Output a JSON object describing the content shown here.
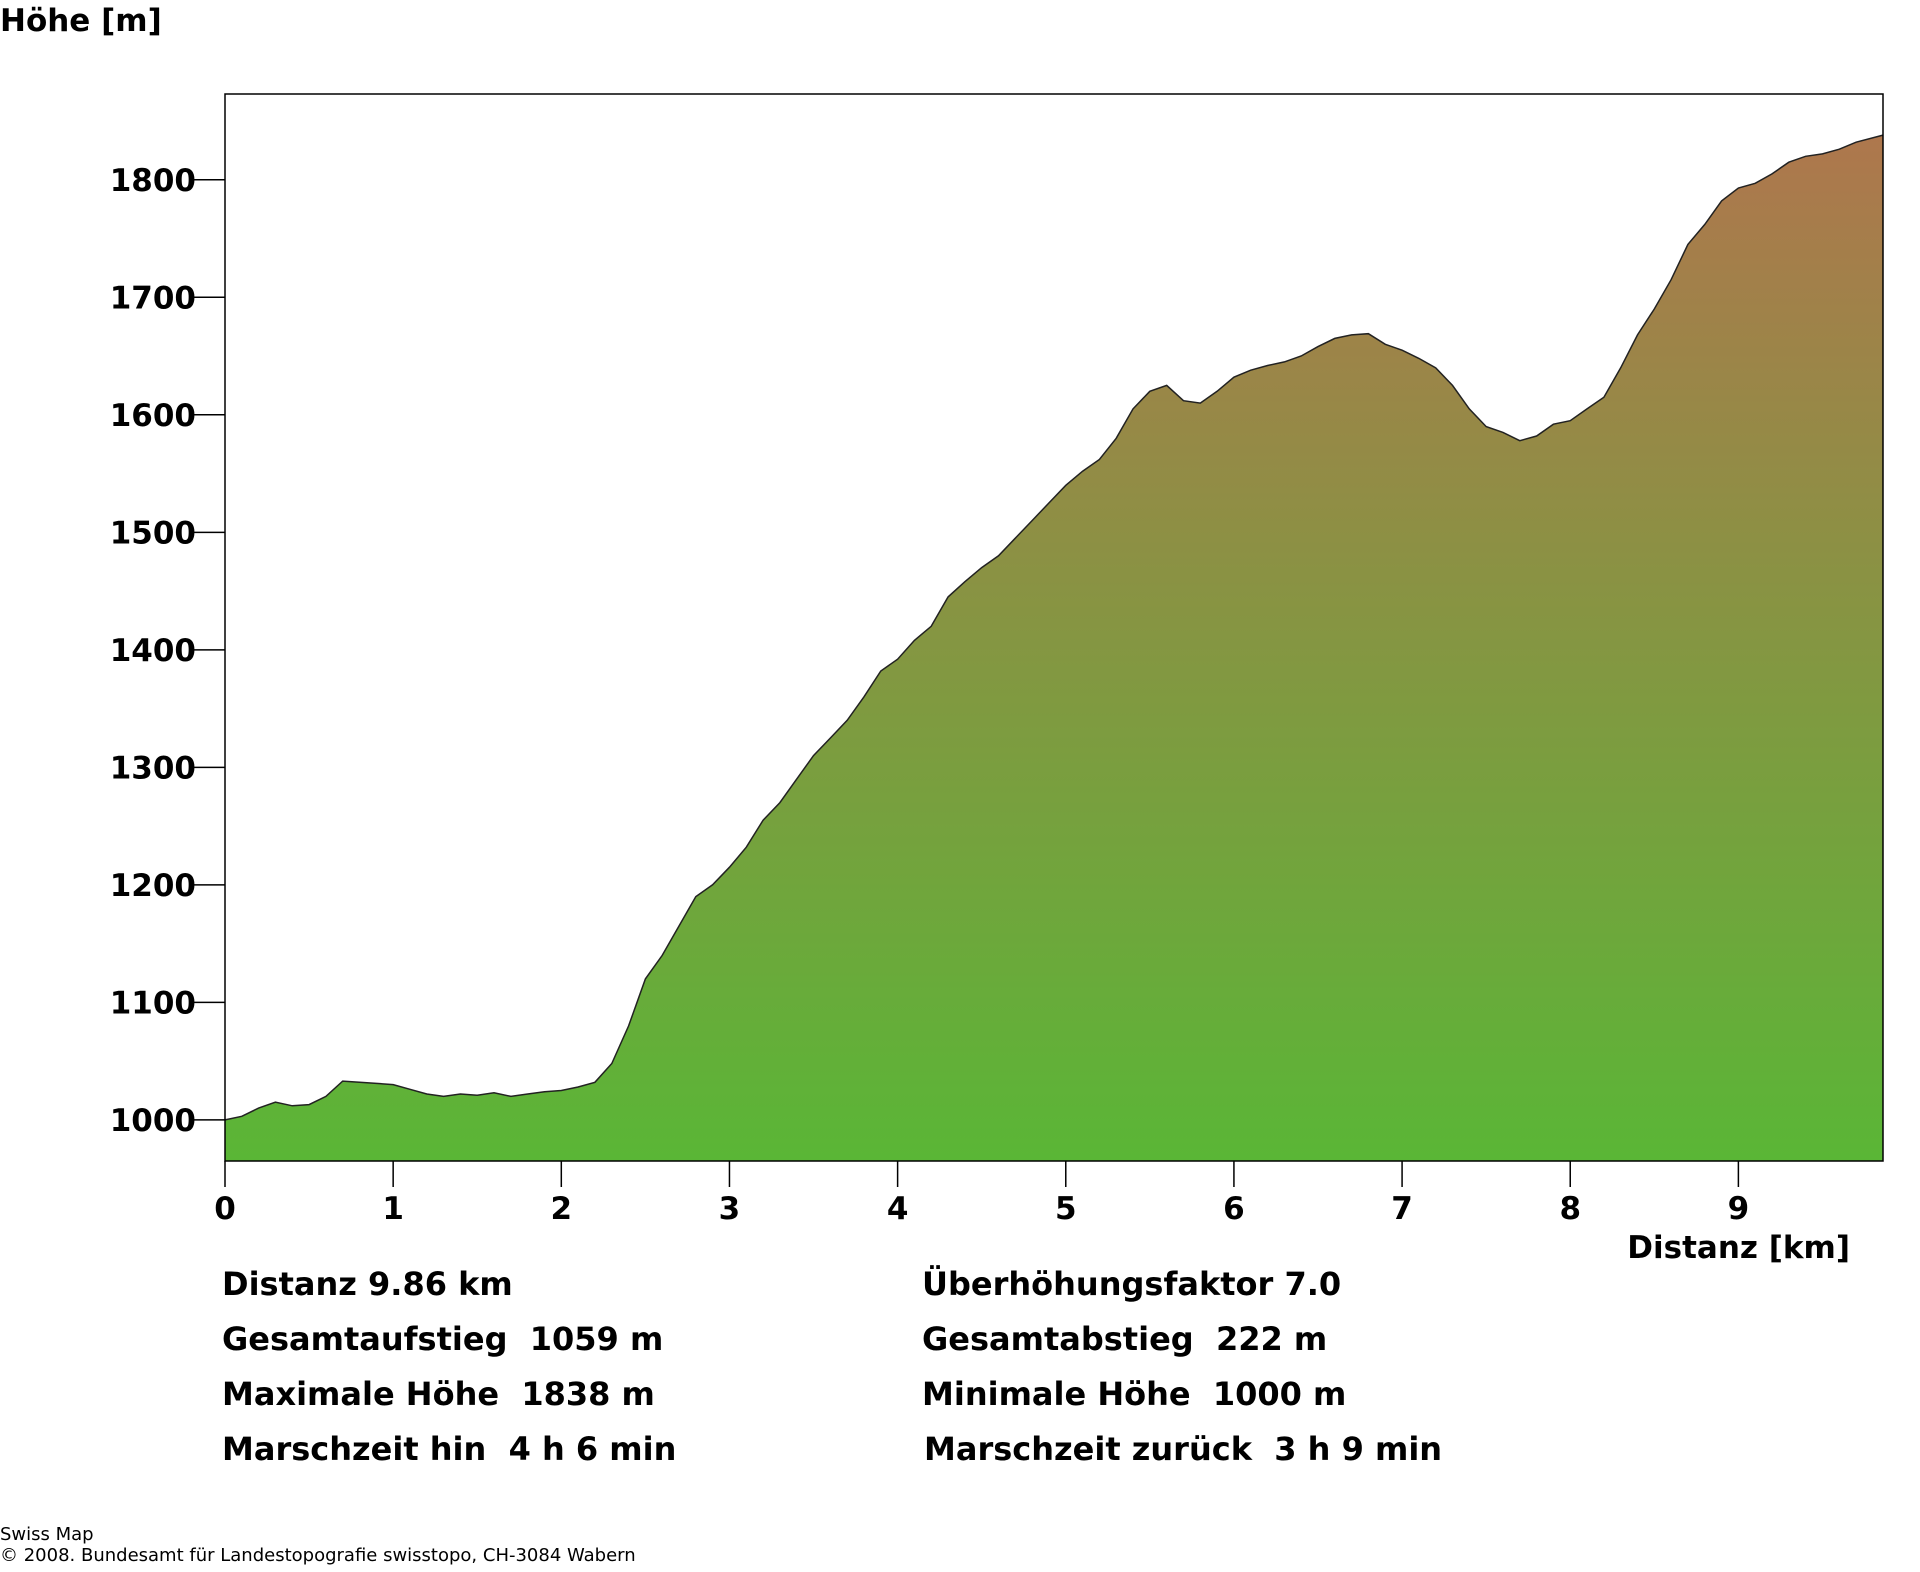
{
  "chart_data": {
    "type": "area",
    "ylabel": "Höhe [m]",
    "xlabel": "Distanz [km]",
    "xlim": [
      0,
      9.86
    ],
    "ylim": [
      965,
      1873
    ],
    "x_ticks": [
      "0",
      "1",
      "2",
      "3",
      "4",
      "5",
      "6",
      "7",
      "8",
      "9"
    ],
    "y_ticks": [
      "1000",
      "1100",
      "1200",
      "1300",
      "1400",
      "1500",
      "1600",
      "1700",
      "1800"
    ],
    "grid": false,
    "fill_gradient": [
      "#5ab636",
      "#ae774d"
    ],
    "series": [
      {
        "x": [
          0,
          0.1,
          0.2,
          0.3,
          0.4,
          0.5,
          0.6,
          0.7,
          0.8,
          0.9,
          1.0,
          1.1,
          1.2,
          1.3,
          1.4,
          1.5,
          1.6,
          1.7,
          1.8,
          1.9,
          2.0,
          2.1,
          2.2,
          2.3,
          2.4,
          2.5,
          2.6,
          2.7,
          2.8,
          2.9,
          3.0,
          3.1,
          3.2,
          3.3,
          3.4,
          3.5,
          3.6,
          3.7,
          3.8,
          3.9,
          4.0,
          4.1,
          4.2,
          4.3,
          4.4,
          4.5,
          4.6,
          4.7,
          4.8,
          4.9,
          5.0,
          5.1,
          5.2,
          5.3,
          5.4,
          5.5,
          5.6,
          5.7,
          5.8,
          5.9,
          6.0,
          6.1,
          6.2,
          6.3,
          6.4,
          6.5,
          6.6,
          6.7,
          6.8,
          6.9,
          7.0,
          7.1,
          7.2,
          7.3,
          7.4,
          7.5,
          7.6,
          7.7,
          7.8,
          7.9,
          8.0,
          8.1,
          8.2,
          8.3,
          8.4,
          8.5,
          8.6,
          8.7,
          8.8,
          8.9,
          9.0,
          9.1,
          9.2,
          9.3,
          9.4,
          9.5,
          9.6,
          9.7,
          9.86
        ],
        "y": [
          1000,
          1003,
          1010,
          1015,
          1012,
          1013,
          1020,
          1033,
          1032,
          1031,
          1030,
          1026,
          1022,
          1020,
          1022,
          1021,
          1023,
          1020,
          1022,
          1024,
          1025,
          1028,
          1032,
          1048,
          1080,
          1120,
          1140,
          1165,
          1190,
          1200,
          1215,
          1232,
          1255,
          1270,
          1290,
          1310,
          1325,
          1340,
          1360,
          1382,
          1392,
          1408,
          1420,
          1445,
          1458,
          1470,
          1480,
          1495,
          1510,
          1525,
          1540,
          1552,
          1562,
          1580,
          1605,
          1620,
          1625,
          1612,
          1610,
          1620,
          1632,
          1638,
          1642,
          1645,
          1650,
          1658,
          1665,
          1668,
          1669,
          1660,
          1655,
          1648,
          1640,
          1625,
          1605,
          1590,
          1585,
          1578,
          1582,
          1592,
          1595,
          1605,
          1615,
          1640,
          1668,
          1690,
          1715,
          1745,
          1762,
          1782,
          1793,
          1797,
          1805,
          1815,
          1820,
          1822,
          1826,
          1832,
          1838
        ]
      }
    ]
  },
  "stats": {
    "distance": "Distanz 9.86 km",
    "exaggeration": "Überhöhungsfaktor 7.0",
    "ascent": "Gesamtaufstieg  1059 m",
    "descent": "Gesamtabstieg  222 m",
    "max_height": "Maximale Höhe  1838 m",
    "min_height": "Minimale Höhe  1000 m",
    "time_out": "Marschzeit hin  4 h 6 min",
    "time_back": "Marschzeit zurück  3 h 9 min"
  },
  "footer": {
    "line1": "Swiss Map",
    "line2": "© 2008. Bundesamt für Landestopografie swisstopo, CH-3084 Wabern"
  }
}
